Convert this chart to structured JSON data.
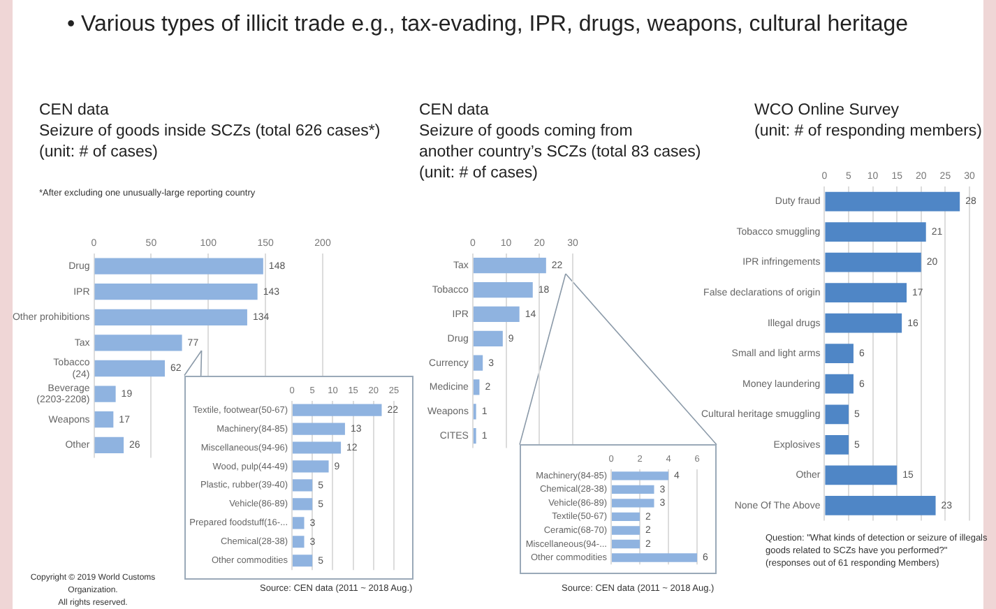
{
  "chart_data": [
    {
      "type": "other",
      "title": "• Various types of illicit trade e.g., tax-evading, IPR, drugs, weapons, cultural heritage",
      "annotations": [
        "Copyright © 2019 World Customs Organization.\nAll rights reserved."
      ]
    },
    {
      "type": "bar",
      "orientation": "horizontal",
      "title": "CEN data",
      "subtitle": "Seizure of goods inside SCZs (total 626 cases*)\n(unit: # of cases)",
      "annotations": [
        "*After excluding one unusually-large reporting country"
      ],
      "categories": [
        "Drug",
        "IPR",
        "Other prohibitions",
        "Tax",
        "Tobacco\n(24)",
        "Beverage\n(2203-2208)",
        "Weapons",
        "Other"
      ],
      "values": [
        148,
        143,
        134,
        77,
        62,
        19,
        17,
        26
      ],
      "color": "#8fb3e0",
      "xlim": [
        0,
        200
      ],
      "xticks": [
        0,
        50,
        100,
        150,
        200
      ],
      "grid": "x",
      "legend": false,
      "data_labels": true
    },
    {
      "type": "bar",
      "orientation": "horizontal",
      "annotations": [
        "Source: CEN data (2011 ~ 2018 Aug.)"
      ],
      "categories": [
        "Textile, footwear(50-67)",
        "Machinery(84-85)",
        "Miscellaneous(94-96)",
        "Wood, pulp(44-49)",
        "Plastic, rubber(39-40)",
        "Vehicle(86-89)",
        "Prepared foodstuff(16-...",
        "Chemical(28-38)",
        "Other commodities"
      ],
      "values": [
        22,
        13,
        12,
        9,
        5,
        5,
        3,
        3,
        5
      ],
      "color": "#8fb3e0",
      "xlim": [
        0,
        25
      ],
      "xticks": [
        0,
        5,
        10,
        15,
        20,
        25
      ],
      "grid": "x",
      "legend": false,
      "data_labels": true
    },
    {
      "type": "bar",
      "orientation": "horizontal",
      "title": "CEN data",
      "subtitle": "Seizure of goods coming from\nanother country’s SCZs (total 83 cases)\n(unit: # of cases)",
      "categories": [
        "Tax",
        "Tobacco",
        "IPR",
        "Drug",
        "Currency",
        "Medicine",
        "Weapons",
        "CITES"
      ],
      "values": [
        22,
        18,
        14,
        9,
        3,
        2,
        1,
        1
      ],
      "color": "#8fb3e0",
      "xlim": [
        0,
        30
      ],
      "xticks": [
        0,
        10,
        20,
        30
      ],
      "grid": "x",
      "legend": false,
      "data_labels": true
    },
    {
      "type": "bar",
      "orientation": "horizontal",
      "annotations": [
        "Source: CEN data (2011 ~ 2018 Aug.)"
      ],
      "categories": [
        "Machinery(84-85)",
        "Chemical(28-38)",
        "Vehicle(86-89)",
        "Textile(50-67)",
        "Ceramic(68-70)",
        "Miscellaneous(94-...",
        "Other commodities"
      ],
      "values": [
        4,
        3,
        3,
        2,
        2,
        2,
        6
      ],
      "color": "#8fb3e0",
      "xlim": [
        0,
        6
      ],
      "xticks": [
        0,
        2,
        4,
        6
      ],
      "grid": "x",
      "legend": false,
      "data_labels": true
    },
    {
      "type": "bar",
      "orientation": "horizontal",
      "title": "WCO Online Survey",
      "subtitle": "(unit: # of responding members)",
      "annotations": [
        "Question: \"What kinds of detection or seizure of illegals goods related to SCZs have you performed?\"\n(responses out of 61 responding Members)"
      ],
      "categories": [
        "Duty fraud",
        "Tobacco smuggling",
        "IPR infringements",
        "False declarations of origin",
        "Illegal drugs",
        "Small and light arms",
        "Money laundering",
        "Cultural heritage smuggling",
        "Explosives",
        "Other",
        "None Of The Above"
      ],
      "values": [
        28,
        21,
        20,
        17,
        16,
        6,
        6,
        5,
        5,
        15,
        23
      ],
      "color": "#4f86c6",
      "xlim": [
        0,
        30
      ],
      "xticks": [
        0,
        5,
        10,
        15,
        20,
        25,
        30
      ],
      "grid": "x",
      "legend": false,
      "data_labels": true
    }
  ]
}
